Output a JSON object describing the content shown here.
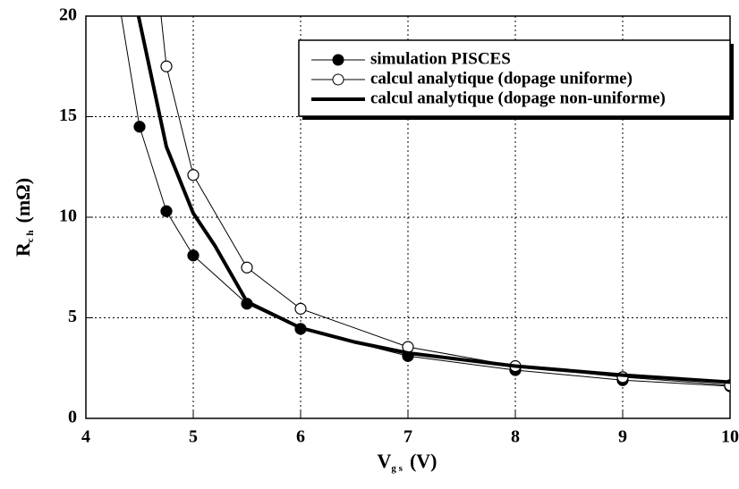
{
  "chart_data": {
    "type": "line",
    "xlabel": {
      "main": "V",
      "sub": "g s",
      "unit": "(V)"
    },
    "ylabel": {
      "main": "R",
      "sub": "c h",
      "unit": "(mΩ)"
    },
    "xlim": [
      4,
      10
    ],
    "ylim": [
      0,
      20
    ],
    "xticks": [
      4,
      5,
      6,
      7,
      8,
      9,
      10
    ],
    "yticks": [
      0,
      5,
      10,
      15,
      20
    ],
    "grid": true,
    "legend": "upper right",
    "series": [
      {
        "name": "simulation PISCES",
        "color": "#000000",
        "marker": "filled",
        "width": 1,
        "x": [
          4.33,
          4.5,
          4.75,
          5,
          5.5,
          6,
          7,
          8,
          9,
          10
        ],
        "values": [
          20,
          14.5,
          10.3,
          8.1,
          5.7,
          4.45,
          3.1,
          2.4,
          1.9,
          1.6
        ]
      },
      {
        "name": "calcul analytique (dopage uniforme)",
        "color": "#000000",
        "marker": "open",
        "width": 1,
        "x": [
          4.7,
          4.75,
          5,
          5.5,
          6,
          7,
          8,
          9,
          10
        ],
        "values": [
          20,
          17.5,
          12.1,
          7.5,
          5.45,
          3.55,
          2.6,
          2.05,
          1.65
        ]
      },
      {
        "name": "calcul analytique (dopage non-uniforme)",
        "color": "#000000",
        "marker": null,
        "width": 4,
        "x": [
          4.49,
          4.75,
          5,
          5.2,
          5.5,
          6,
          6.5,
          7,
          8,
          9,
          10
        ],
        "values": [
          20,
          13.5,
          10.2,
          8.6,
          5.8,
          4.5,
          3.8,
          3.25,
          2.6,
          2.15,
          1.8
        ]
      }
    ]
  }
}
